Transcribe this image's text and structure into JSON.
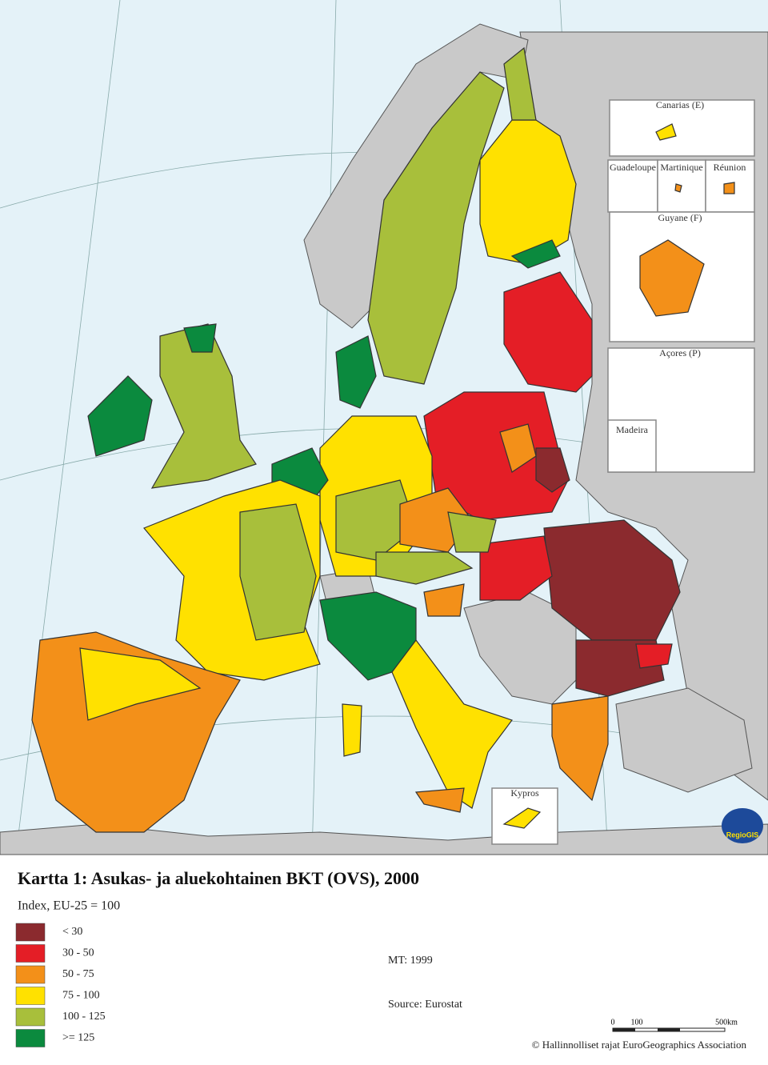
{
  "map": {
    "insets": [
      "Canarias (E)",
      "Guadeloupe",
      "Martinique",
      "Réunion",
      "Guyane (F)",
      "Açores (P)",
      "Madeira",
      "Kypros"
    ],
    "logo": "RegioGIS"
  },
  "title": "Kartta 1: Asukas- ja aluekohtainen BKT (OVS), 2000",
  "subtitle": "Index, EU-25 = 100",
  "legend": [
    {
      "label": "< 30",
      "color": "#8b2a2e"
    },
    {
      "label": "30 -  50",
      "color": "#e41e26"
    },
    {
      "label": "50 -  75",
      "color": "#f39019"
    },
    {
      "label": "75 -  100",
      "color": "#ffe100"
    },
    {
      "label": "100 -  125",
      "color": "#a8bf3b"
    },
    {
      "label": ">=  125",
      "color": "#0b8a3e"
    }
  ],
  "notes": {
    "mt": "MT: 1999",
    "source": "Source: Eurostat"
  },
  "scale": [
    "0",
    "100",
    "500km"
  ],
  "copyright": "© Hallinnolliset rajat EuroGeographics Association"
}
